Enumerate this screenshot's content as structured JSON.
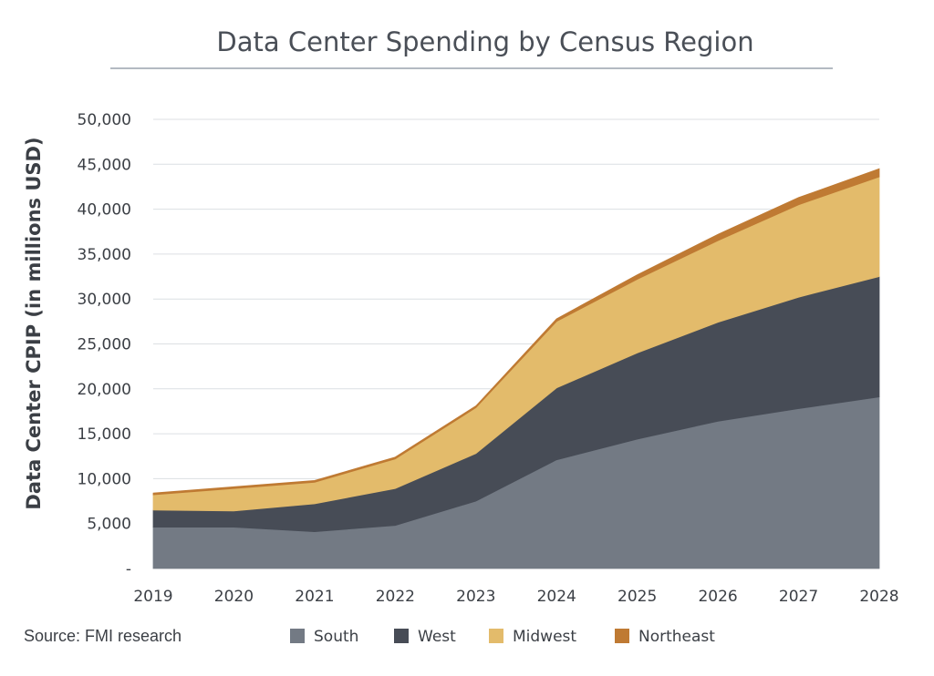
{
  "chart_data": {
    "type": "area",
    "stacked": true,
    "title": "Data Center Spending by Census Region",
    "ylabel": "Data Center CPIP (in millions USD)",
    "xlabel": "",
    "x": [
      "2019",
      "2020",
      "2021",
      "2022",
      "2023",
      "2024",
      "2025",
      "2026",
      "2027",
      "2028"
    ],
    "ylim": [
      0,
      50000
    ],
    "yticks": [
      0,
      5000,
      10000,
      15000,
      20000,
      25000,
      30000,
      35000,
      40000,
      45000,
      50000
    ],
    "ytick_labels": [
      "-",
      "5,000",
      "10,000",
      "15,000",
      "20,000",
      "25,000",
      "30,000",
      "35,000",
      "40,000",
      "45,000",
      "50,000"
    ],
    "grid": true,
    "legend_position": "bottom",
    "series": [
      {
        "name": "South",
        "color": "#737a84",
        "values": [
          4600,
          4600,
          4100,
          4800,
          7500,
          12100,
          14400,
          16400,
          17800,
          19100
        ]
      },
      {
        "name": "West",
        "color": "#474c56",
        "values": [
          1900,
          1800,
          3100,
          4100,
          5300,
          8000,
          9600,
          11000,
          12400,
          13400
        ]
      },
      {
        "name": "Midwest",
        "color": "#e3bb6b",
        "values": [
          1700,
          2500,
          2400,
          3300,
          5100,
          7400,
          8200,
          9100,
          10300,
          11100
        ]
      },
      {
        "name": "Northeast",
        "color": "#bf7a33",
        "values": [
          200,
          200,
          200,
          200,
          200,
          300,
          500,
          700,
          800,
          900
        ]
      }
    ],
    "source": "Source: FMI research"
  }
}
